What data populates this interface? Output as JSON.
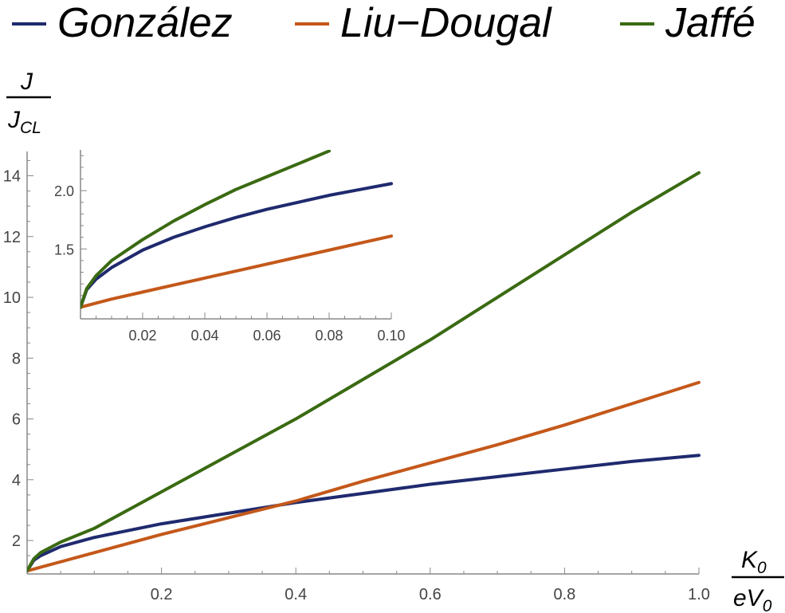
{
  "chart_data": [
    {
      "type": "line",
      "role": "main",
      "legend": [
        "González",
        "Liu−Dougal",
        "Jaffé"
      ],
      "x_label": {
        "num": "K",
        "num_sub": "0",
        "den": "eV",
        "den_sub": "0"
      },
      "y_label": {
        "num": "J",
        "den": "J",
        "den_sub": "CL"
      },
      "xlim": [
        0,
        1.0
      ],
      "ylim": [
        0.9,
        14.8
      ],
      "xticks": [
        0.2,
        0.4,
        0.6,
        0.8,
        1.0
      ],
      "xtick_labels": [
        "0.2",
        "0.4",
        "0.6",
        "0.8",
        "1.0"
      ],
      "yticks": [
        2,
        4,
        6,
        8,
        10,
        12,
        14
      ],
      "ytick_labels": [
        "2",
        "4",
        "6",
        "8",
        "10",
        "12",
        "14"
      ],
      "series": [
        {
          "name": "González",
          "color": "#1f2a6e",
          "x": [
            0,
            0.01,
            0.02,
            0.05,
            0.1,
            0.2,
            0.3,
            0.4,
            0.5,
            0.6,
            0.7,
            0.8,
            0.9,
            1.0
          ],
          "y": [
            1.0,
            1.35,
            1.5,
            1.8,
            2.1,
            2.55,
            2.9,
            3.25,
            3.55,
            3.85,
            4.1,
            4.35,
            4.6,
            4.8
          ]
        },
        {
          "name": "Liu−Dougal",
          "color": "#c4581a",
          "x": [
            0,
            0.01,
            0.02,
            0.05,
            0.1,
            0.2,
            0.3,
            0.4,
            0.5,
            0.6,
            0.7,
            0.8,
            0.9,
            1.0
          ],
          "y": [
            1.0,
            1.06,
            1.12,
            1.3,
            1.6,
            2.2,
            2.75,
            3.3,
            3.95,
            4.55,
            5.15,
            5.8,
            6.5,
            7.2
          ]
        },
        {
          "name": "Jaffé",
          "color": "#3a6a12",
          "x": [
            0,
            0.01,
            0.02,
            0.05,
            0.1,
            0.2,
            0.3,
            0.4,
            0.5,
            0.6,
            0.7,
            0.8,
            0.9,
            1.0
          ],
          "y": [
            1.0,
            1.4,
            1.6,
            1.95,
            2.4,
            3.6,
            4.8,
            6.0,
            7.3,
            8.6,
            10.0,
            11.4,
            12.8,
            14.1
          ]
        }
      ]
    },
    {
      "type": "line",
      "role": "inset",
      "xlim": [
        0,
        0.1
      ],
      "ylim": [
        0.9,
        2.35
      ],
      "xticks": [
        0.02,
        0.04,
        0.06,
        0.08,
        0.1
      ],
      "xtick_labels": [
        "0.02",
        "0.04",
        "0.06",
        "0.08",
        "0.10"
      ],
      "yticks": [
        1.5,
        2.0
      ],
      "ytick_labels": [
        "1.5",
        "2.0"
      ],
      "series": [
        {
          "name": "González",
          "color": "#1f2a6e",
          "x": [
            0,
            0.002,
            0.005,
            0.01,
            0.02,
            0.03,
            0.04,
            0.05,
            0.06,
            0.07,
            0.08,
            0.09,
            0.1
          ],
          "y": [
            1.0,
            1.15,
            1.24,
            1.34,
            1.49,
            1.6,
            1.69,
            1.77,
            1.84,
            1.9,
            1.96,
            2.01,
            2.06
          ]
        },
        {
          "name": "Liu−Dougal",
          "color": "#c4581a",
          "x": [
            0,
            0.01,
            0.02,
            0.03,
            0.04,
            0.05,
            0.06,
            0.07,
            0.08,
            0.09,
            0.1
          ],
          "y": [
            1.0,
            1.07,
            1.13,
            1.19,
            1.25,
            1.31,
            1.37,
            1.43,
            1.49,
            1.55,
            1.61
          ]
        },
        {
          "name": "Jaffé",
          "color": "#3a6a12",
          "x": [
            0,
            0.002,
            0.005,
            0.01,
            0.02,
            0.03,
            0.04,
            0.05,
            0.06,
            0.07,
            0.08
          ],
          "y": [
            1.0,
            1.16,
            1.27,
            1.4,
            1.58,
            1.74,
            1.88,
            2.01,
            2.12,
            2.23,
            2.34
          ]
        }
      ]
    }
  ]
}
